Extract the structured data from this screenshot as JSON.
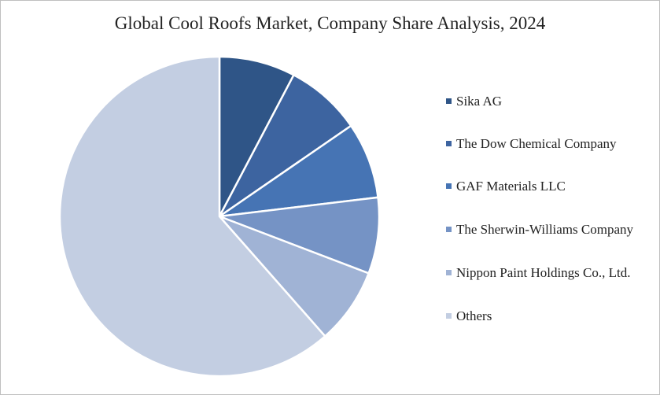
{
  "chart_data": {
    "type": "pie",
    "title": "Global Cool Roofs Market, Company Share Analysis, 2024",
    "categories": [
      "Sika AG",
      "The Dow Chemical Company",
      "GAF Materials LLC",
      "The Sherwin-Williams Company",
      "Nippon Paint Holdings Co., Ltd.",
      "Others"
    ],
    "values": [
      7.7,
      7.7,
      7.7,
      7.7,
      7.7,
      61.5
    ],
    "colors": [
      "#2f5587",
      "#3d64a0",
      "#4674b4",
      "#7593c5",
      "#a0b3d5",
      "#c3cee2"
    ],
    "legend": "right"
  }
}
